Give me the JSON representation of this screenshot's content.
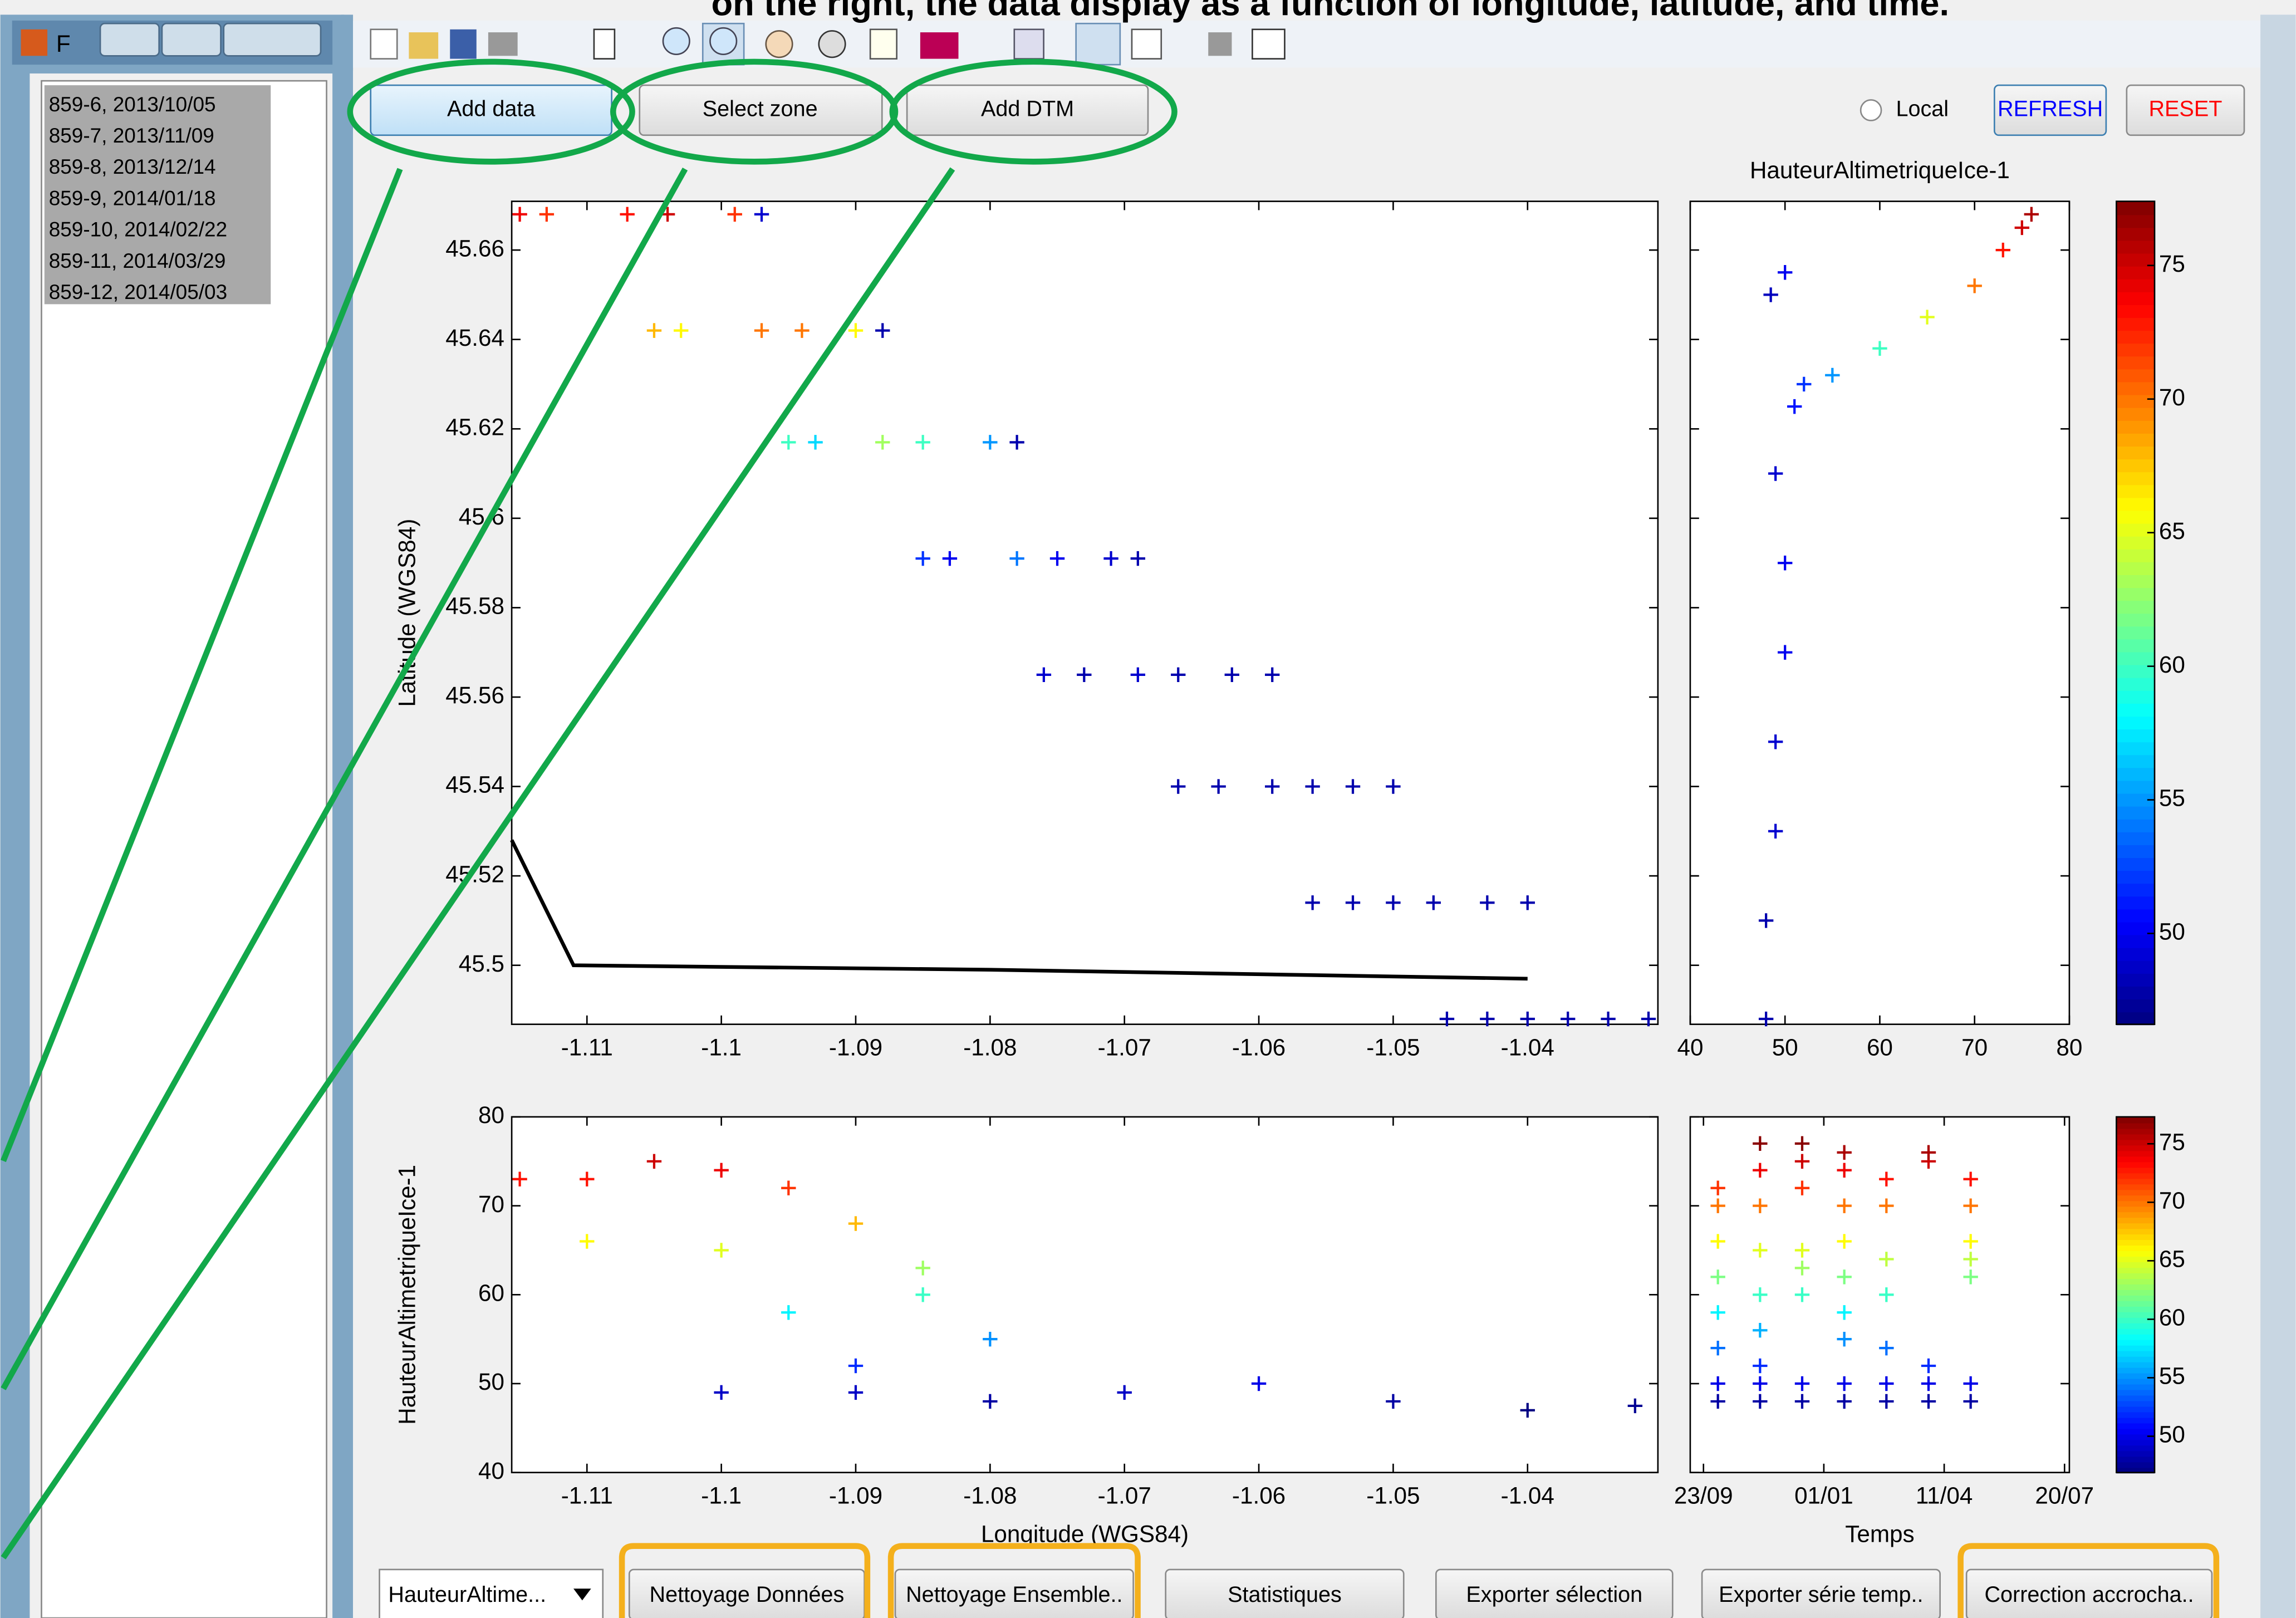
{
  "caption": "on the right, the data display as a function of longitude, latitude, and time.",
  "window": {
    "title": "F",
    "list": [
      "859-6, 2013/10/05",
      "859-7, 2013/11/09",
      "859-8, 2013/12/14",
      "859-9, 2014/01/18",
      "859-10, 2014/02/22",
      "859-11, 2014/03/29",
      "859-12, 2014/05/03"
    ]
  },
  "toolbar": {
    "buttons": [
      "Add data",
      "Select zone",
      "Add DTM"
    ],
    "radio": "Local",
    "refresh": "REFRESH",
    "reset": "RESET"
  },
  "plots": {
    "map": {
      "type": "scatter",
      "ylabel": "Latitude (WGS84)",
      "color_by": "c",
      "xlim": [
        -1.1156,
        -1.0303
      ],
      "ylim": [
        45.4868,
        45.6709
      ],
      "xticks": [
        -1.11,
        -1.1,
        -1.09,
        -1.08,
        -1.07,
        -1.06,
        -1.05,
        -1.04
      ],
      "yticks": [
        45.5,
        45.52,
        45.54,
        45.56,
        45.58,
        45.6,
        45.62,
        45.64,
        45.66
      ],
      "series": [
        {
          "x": [
            -1.115,
            -1.105,
            -1.095,
            -1.085,
            -1.076,
            -1.066,
            -1.056,
            -1.046
          ],
          "y": [
            45.668,
            45.642,
            45.617,
            45.591,
            45.565,
            45.54,
            45.514,
            45.488
          ],
          "c": [
            74,
            68,
            60,
            52,
            49,
            48,
            48,
            48
          ]
        },
        {
          "x": [
            -1.113,
            -1.103,
            -1.093,
            -1.083,
            -1.073,
            -1.063,
            -1.053,
            -1.043
          ],
          "y": [
            45.668,
            45.642,
            45.617,
            45.591,
            45.565,
            45.54,
            45.514,
            45.488
          ],
          "c": [
            72,
            66,
            57,
            50,
            48,
            48,
            48,
            48
          ]
        },
        {
          "x": [
            -1.107,
            -1.097,
            -1.088,
            -1.078,
            -1.069,
            -1.059,
            -1.05,
            -1.04
          ],
          "y": [
            45.668,
            45.642,
            45.617,
            45.591,
            45.565,
            45.54,
            45.514,
            45.488
          ],
          "c": [
            73,
            70,
            63,
            54,
            49,
            48,
            48,
            48
          ]
        },
        {
          "x": [
            -1.104,
            -1.094,
            -1.085,
            -1.075,
            -1.066,
            -1.056,
            -1.047,
            -1.037
          ],
          "y": [
            45.668,
            45.642,
            45.617,
            45.591,
            45.565,
            45.54,
            45.514,
            45.488
          ],
          "c": [
            75,
            70,
            60,
            50,
            48,
            48,
            48,
            48
          ]
        },
        {
          "x": [
            -1.099,
            -1.09,
            -1.08,
            -1.071,
            -1.062,
            -1.053,
            -1.043,
            -1.034
          ],
          "y": [
            45.668,
            45.642,
            45.617,
            45.591,
            45.565,
            45.54,
            45.514,
            45.488
          ],
          "c": [
            72,
            66,
            55,
            49,
            48,
            48,
            48,
            48
          ]
        },
        {
          "x": [
            -1.097,
            -1.088,
            -1.078,
            -1.069,
            -1.059,
            -1.05,
            -1.04,
            -1.031
          ],
          "y": [
            45.668,
            45.642,
            45.617,
            45.591,
            45.565,
            45.54,
            45.514,
            45.488
          ],
          "c": [
            49,
            48,
            48,
            48,
            48,
            48,
            48,
            48
          ]
        }
      ],
      "dtm": {
        "color": "#000000",
        "x": [
          -1.1156,
          -1.111,
          -1.08,
          -1.05,
          -1.04
        ],
        "y": [
          45.528,
          45.5,
          45.499,
          45.4975,
          45.497
        ]
      }
    },
    "profile": {
      "type": "scatter",
      "title": "HauteurAltimetriqueIce-1",
      "color_by": "x",
      "xlim": [
        40,
        80
      ],
      "xticks": [
        40,
        50,
        60,
        70,
        80
      ],
      "ylim": [
        45.4868,
        45.6709
      ],
      "yticks": [
        45.5,
        45.52,
        45.54,
        45.56,
        45.58,
        45.6,
        45.62,
        45.64,
        45.66
      ],
      "series": [
        {
          "x": [
            48,
            48,
            49,
            49,
            50,
            50,
            49,
            51,
            52,
            55,
            60,
            65,
            70,
            73,
            75,
            76,
            48.5,
            50
          ],
          "y": [
            45.488,
            45.51,
            45.53,
            45.55,
            45.57,
            45.59,
            45.61,
            45.625,
            45.63,
            45.632,
            45.638,
            45.645,
            45.652,
            45.66,
            45.665,
            45.668,
            45.65,
            45.655
          ]
        }
      ]
    },
    "colorbar_top": {
      "clim": [
        46.6,
        77.4
      ],
      "ticks": [
        50,
        55,
        60,
        65,
        70,
        75
      ]
    },
    "lon_plot": {
      "type": "scatter",
      "xlabel": "Longitude (WGS84)",
      "ylabel": "HauteurAltimetriqueIce-1",
      "color_by": "y",
      "xlim": [
        -1.1156,
        -1.0303
      ],
      "xticks": [
        -1.11,
        -1.1,
        -1.09,
        -1.08,
        -1.07,
        -1.06,
        -1.05,
        -1.04
      ],
      "ylim": [
        40,
        80
      ],
      "yticks": [
        40,
        50,
        60,
        70,
        80
      ],
      "series": [
        {
          "x": [
            -1.115,
            -1.11,
            -1.105,
            -1.1,
            -1.095,
            -1.09,
            -1.085,
            -1.08,
            -1.1,
            -1.09,
            -1.08,
            -1.07,
            -1.06,
            -1.05,
            -1.04,
            -1.032,
            -1.11,
            -1.1,
            -1.095,
            -1.09,
            -1.085
          ],
          "y": [
            73,
            73,
            75,
            74,
            72,
            68,
            63,
            55,
            49,
            49,
            48,
            49,
            50,
            48,
            47,
            47.5,
            66,
            65,
            58,
            52,
            60
          ]
        }
      ]
    },
    "time_plot": {
      "type": "scatter",
      "xlabel": "Temps",
      "color_by": "y",
      "xlim": [
        "2013-09-12",
        "2014-07-24"
      ],
      "xticks": [
        {
          "value": "2013-09-23",
          "label": "23/09"
        },
        {
          "value": "2014-01-01",
          "label": "01/01"
        },
        {
          "value": "2014-04-11",
          "label": "11/04"
        },
        {
          "value": "2014-07-20",
          "label": "20/07"
        }
      ],
      "ylim": [
        40,
        80
      ],
      "yticks": [
        40,
        50,
        60,
        70,
        80
      ],
      "series": [
        {
          "x": "2013-10-05",
          "y": [
            48,
            50,
            54,
            58,
            62,
            66,
            70,
            72
          ]
        },
        {
          "x": "2013-11-09",
          "y": [
            48,
            50,
            52,
            56,
            60,
            65,
            70,
            74,
            77
          ]
        },
        {
          "x": "2013-12-14",
          "y": [
            48,
            50,
            60,
            63,
            65,
            72,
            75,
            77
          ]
        },
        {
          "x": "2014-01-18",
          "y": [
            48,
            50,
            55,
            58,
            62,
            66,
            70,
            74,
            76
          ]
        },
        {
          "x": "2014-02-22",
          "y": [
            48,
            50,
            54,
            60,
            64,
            70,
            73
          ]
        },
        {
          "x": "2014-03-29",
          "y": [
            48,
            50,
            52,
            75,
            76
          ]
        },
        {
          "x": "2014-05-03",
          "y": [
            48,
            50,
            62,
            64,
            66,
            70,
            73
          ]
        }
      ]
    },
    "colorbar_bottom": {
      "clim": [
        46.9,
        77.3
      ],
      "ticks": [
        50,
        55,
        60,
        65,
        70,
        75
      ]
    }
  },
  "bottom": {
    "dropdown": "HauteurAltime...",
    "buttons": [
      "Nettoyage Données",
      "Nettoyage Ensemble..",
      "Statistiques",
      "Exporter sélection",
      "Exporter série temp..",
      "Correction accrocha.."
    ]
  }
}
